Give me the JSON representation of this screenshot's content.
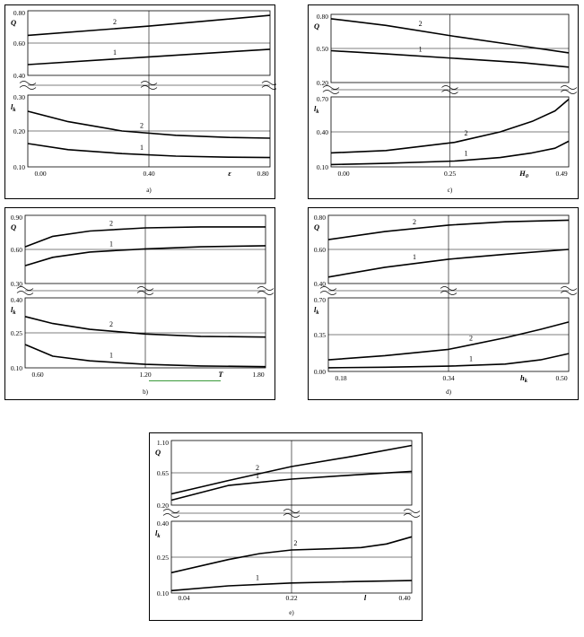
{
  "chart_data": [
    {
      "type": "line",
      "caption": "a)",
      "xlabel": "ε",
      "xticks": [
        "0.00",
        "0.40",
        "0.80"
      ],
      "xlim": [
        -0.05,
        0.85
      ],
      "top": {
        "ylabel": "Q",
        "ylim": [
          0.4,
          0.82
        ],
        "yticks": [
          "0.80",
          "0.60",
          "0.40"
        ],
        "series": [
          {
            "name": "1",
            "x": [
              -0.05,
              0.4,
              0.85
            ],
            "y": [
              0.47,
              0.52,
              0.57
            ]
          },
          {
            "name": "2",
            "x": [
              -0.05,
              0.4,
              0.85
            ],
            "y": [
              0.66,
              0.72,
              0.79
            ]
          }
        ]
      },
      "bottom": {
        "ylabel": "lk",
        "ylim": [
          0.1,
          0.3
        ],
        "yticks": [
          "0.30",
          "0.20",
          "0.10"
        ],
        "series": [
          {
            "name": "1",
            "x": [
              -0.05,
              0.1,
              0.3,
              0.5,
              0.7,
              0.85
            ],
            "y": [
              0.165,
              0.148,
              0.137,
              0.13,
              0.127,
              0.126
            ]
          },
          {
            "name": "2",
            "x": [
              -0.05,
              0.1,
              0.3,
              0.5,
              0.7,
              0.85
            ],
            "y": [
              0.255,
              0.226,
              0.2,
              0.188,
              0.182,
              0.18
            ]
          }
        ]
      }
    },
    {
      "type": "line",
      "caption": "c)",
      "xlabel": "H0",
      "xticks": [
        "0.00",
        "0.25",
        "0.49"
      ],
      "xlim": [
        -0.02,
        0.5
      ],
      "top": {
        "ylabel": "Q",
        "ylim": [
          0.2,
          0.82
        ],
        "yticks": [
          "0.80",
          "0.50",
          "0.20"
        ],
        "series": [
          {
            "name": "1",
            "x": [
              -0.02,
              0.1,
              0.25,
              0.4,
              0.5
            ],
            "y": [
              0.49,
              0.46,
              0.42,
              0.38,
              0.34
            ]
          },
          {
            "name": "2",
            "x": [
              -0.02,
              0.1,
              0.25,
              0.4,
              0.5
            ],
            "y": [
              0.78,
              0.72,
              0.62,
              0.53,
              0.47
            ]
          }
        ]
      },
      "bottom": {
        "ylabel": "lk",
        "ylim": [
          0.1,
          0.7
        ],
        "yticks": [
          "0.70",
          "0.40",
          "0.10"
        ],
        "series": [
          {
            "name": "1",
            "x": [
              -0.02,
              0.1,
              0.25,
              0.35,
              0.42,
              0.47,
              0.5
            ],
            "y": [
              0.12,
              0.13,
              0.15,
              0.18,
              0.22,
              0.26,
              0.32
            ]
          },
          {
            "name": "2",
            "x": [
              -0.02,
              0.1,
              0.25,
              0.35,
              0.42,
              0.47,
              0.5
            ],
            "y": [
              0.22,
              0.24,
              0.31,
              0.4,
              0.49,
              0.58,
              0.68
            ]
          }
        ]
      }
    },
    {
      "type": "line",
      "caption": "b)",
      "xlabel": "T",
      "xticks": [
        "0.60",
        "1.20",
        "1.80"
      ],
      "xlim": [
        0.55,
        1.85
      ],
      "top": {
        "ylabel": "Q",
        "ylim": [
          0.3,
          0.95
        ],
        "yticks": [
          "0.90",
          "0.60",
          "0.30"
        ],
        "series": [
          {
            "name": "1",
            "x": [
              0.55,
              0.7,
              0.9,
              1.2,
              1.5,
              1.85
            ],
            "y": [
              0.47,
              0.55,
              0.6,
              0.63,
              0.65,
              0.66
            ]
          },
          {
            "name": "2",
            "x": [
              0.55,
              0.7,
              0.9,
              1.2,
              1.5,
              1.85
            ],
            "y": [
              0.65,
              0.75,
              0.8,
              0.83,
              0.84,
              0.84
            ]
          }
        ]
      },
      "bottom": {
        "ylabel": "lk",
        "ylim": [
          0.1,
          0.4
        ],
        "yticks": [
          "0.40",
          "0.25",
          "0.10"
        ],
        "series": [
          {
            "name": "1",
            "x": [
              0.55,
              0.7,
              0.9,
              1.2,
              1.5,
              1.85
            ],
            "y": [
              0.2,
              0.15,
              0.13,
              0.115,
              0.108,
              0.105
            ]
          },
          {
            "name": "2",
            "x": [
              0.55,
              0.7,
              0.9,
              1.2,
              1.5,
              1.85
            ],
            "y": [
              0.32,
              0.29,
              0.265,
              0.245,
              0.235,
              0.232
            ]
          }
        ]
      }
    },
    {
      "type": "line",
      "caption": "d)",
      "xlabel": "hk",
      "xticks": [
        "0.18",
        "0.34",
        "0.50"
      ],
      "xlim": [
        0.17,
        0.51
      ],
      "top": {
        "ylabel": "Q",
        "ylim": [
          0.4,
          0.82
        ],
        "yticks": [
          "0.80",
          "0.60",
          "0.40"
        ],
        "series": [
          {
            "name": "1",
            "x": [
              0.17,
              0.25,
              0.34,
              0.42,
              0.51
            ],
            "y": [
              0.44,
              0.5,
              0.55,
              0.58,
              0.61
            ]
          },
          {
            "name": "2",
            "x": [
              0.17,
              0.25,
              0.34,
              0.42,
              0.51
            ],
            "y": [
              0.67,
              0.72,
              0.76,
              0.78,
              0.79
            ]
          }
        ]
      },
      "bottom": {
        "ylabel": "lk",
        "ylim": [
          0.0,
          0.7
        ],
        "yticks": [
          "0.70",
          "0.35",
          "0.00"
        ],
        "series": [
          {
            "name": "1",
            "x": [
              0.17,
              0.25,
              0.34,
              0.42,
              0.47,
              0.51
            ],
            "y": [
              0.035,
              0.04,
              0.05,
              0.07,
              0.11,
              0.17
            ]
          },
          {
            "name": "2",
            "x": [
              0.17,
              0.25,
              0.34,
              0.42,
              0.47,
              0.51
            ],
            "y": [
              0.11,
              0.15,
              0.21,
              0.32,
              0.4,
              0.47
            ]
          }
        ]
      }
    },
    {
      "type": "line",
      "caption": "e)",
      "xlabel": "l",
      "xticks": [
        "0.04",
        "0.22",
        "0.40"
      ],
      "xlim": [
        0.03,
        0.41
      ],
      "top": {
        "ylabel": "Q",
        "ylim": [
          0.2,
          1.12
        ],
        "yticks": [
          "1.10",
          "0.65",
          "0.20"
        ],
        "series": [
          {
            "name": "1",
            "x": [
              0.03,
              0.12,
              0.22,
              0.32,
              0.41
            ],
            "y": [
              0.27,
              0.48,
              0.57,
              0.63,
              0.68
            ]
          },
          {
            "name": "2",
            "x": [
              0.03,
              0.12,
              0.22,
              0.32,
              0.41
            ],
            "y": [
              0.36,
              0.55,
              0.75,
              0.9,
              1.05
            ]
          }
        ]
      },
      "bottom": {
        "ylabel": "lk",
        "ylim": [
          0.1,
          0.4
        ],
        "yticks": [
          "0.40",
          "0.25",
          "0.10"
        ],
        "series": [
          {
            "name": "1",
            "x": [
              0.03,
              0.12,
              0.22,
              0.32,
              0.41
            ],
            "y": [
              0.11,
              0.13,
              0.142,
              0.148,
              0.152
            ]
          },
          {
            "name": "2",
            "x": [
              0.03,
              0.12,
              0.17,
              0.22,
              0.28,
              0.33,
              0.37,
              0.41
            ],
            "y": [
              0.185,
              0.24,
              0.265,
              0.28,
              0.285,
              0.29,
              0.305,
              0.335
            ]
          }
        ]
      }
    }
  ]
}
